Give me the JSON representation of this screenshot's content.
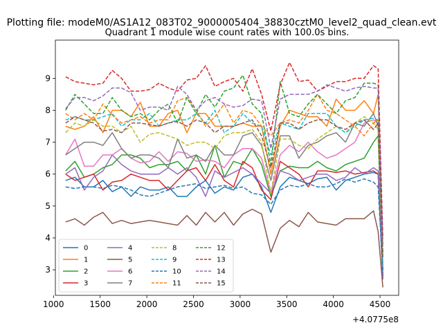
{
  "suptitle": "Plotting file: modeM0/AS1A12_083T02_9000005404_38830cztM0_level2_quad_clean.evt",
  "chart_data": {
    "type": "line",
    "title": "Quadrant 1 module wise count rates with 100.0s bins.",
    "xlabel": "",
    "ylabel": "",
    "x_offset_label": "+4.0775e8",
    "xlim": [
      1020,
      4700
    ],
    "ylim": [
      2.2,
      10.2
    ],
    "xticks": [
      1000,
      1500,
      2000,
      2500,
      3000,
      3500,
      4000,
      4500
    ],
    "yticks": [
      3,
      4,
      5,
      6,
      7,
      8,
      9
    ],
    "legend_loc": "lower left",
    "legend_ncol": 4,
    "x": [
      1130,
      1230,
      1330,
      1430,
      1530,
      1630,
      1730,
      1830,
      1930,
      2030,
      2130,
      2230,
      2330,
      2430,
      2530,
      2630,
      2730,
      2830,
      2930,
      3030,
      3130,
      3230,
      3330,
      3430,
      3530,
      3630,
      3730,
      3830,
      3930,
      4030,
      4130,
      4230,
      4330,
      4430,
      4480,
      4530
    ],
    "series": [
      {
        "name": "0",
        "color": "#1f77b4",
        "style": "solid",
        "values": [
          5.8,
          5.9,
          5.6,
          5.6,
          5.8,
          5.45,
          5.6,
          5.3,
          5.6,
          5.5,
          5.5,
          5.6,
          5.3,
          5.3,
          5.6,
          5.8,
          5.4,
          5.6,
          5.5,
          5.9,
          6.0,
          5.6,
          4.8,
          5.6,
          5.9,
          5.8,
          5.7,
          5.85,
          5.9,
          5.5,
          5.8,
          5.9,
          6.0,
          6.05,
          6.0,
          2.7
        ]
      },
      {
        "name": "1",
        "color": "#ff7f0e",
        "style": "solid",
        "values": [
          7.5,
          7.4,
          7.5,
          7.8,
          7.3,
          8.0,
          8.0,
          7.8,
          8.25,
          7.5,
          7.5,
          7.9,
          8.0,
          7.3,
          7.9,
          7.9,
          7.5,
          7.5,
          7.5,
          7.6,
          7.5,
          7.5,
          6.0,
          7.5,
          8.0,
          7.9,
          7.8,
          7.8,
          7.5,
          8.35,
          8.0,
          8.0,
          8.3,
          7.9,
          8.5,
          3.0
        ]
      },
      {
        "name": "2",
        "color": "#2ca02c",
        "style": "solid",
        "values": [
          6.1,
          6.4,
          5.9,
          6.0,
          6.2,
          6.3,
          6.6,
          6.6,
          6.5,
          6.2,
          6.3,
          6.3,
          6.4,
          6.1,
          6.6,
          6.0,
          6.9,
          5.9,
          6.4,
          6.3,
          6.8,
          6.3,
          5.3,
          6.1,
          6.25,
          6.2,
          6.2,
          6.4,
          6.2,
          6.1,
          6.3,
          6.4,
          6.5,
          7.0,
          7.2,
          2.8
        ]
      },
      {
        "name": "3",
        "color": "#d62728",
        "style": "solid",
        "values": [
          6.0,
          5.8,
          5.9,
          6.0,
          5.5,
          5.75,
          5.8,
          6.0,
          5.9,
          5.8,
          5.8,
          5.5,
          5.8,
          6.1,
          6.2,
          5.8,
          6.3,
          5.8,
          5.6,
          6.4,
          6.2,
          5.5,
          5.2,
          6.4,
          6.2,
          6.0,
          5.6,
          6.1,
          6.1,
          6.05,
          6.1,
          6.0,
          6.05,
          6.1,
          6.0,
          2.8
        ]
      },
      {
        "name": "4",
        "color": "#9467bd",
        "style": "solid",
        "values": [
          6.0,
          6.2,
          5.5,
          5.9,
          6.1,
          6.6,
          6.3,
          6.1,
          6.0,
          6.0,
          6.0,
          6.2,
          6.0,
          6.2,
          5.9,
          5.3,
          6.1,
          5.9,
          6.05,
          6.2,
          6.0,
          5.7,
          5.4,
          6.1,
          6.0,
          5.8,
          5.9,
          6.0,
          6.0,
          5.8,
          5.9,
          6.2,
          6.0,
          6.2,
          6.1,
          2.7
        ]
      },
      {
        "name": "5",
        "color": "#8c564b",
        "style": "solid",
        "values": [
          4.5,
          4.6,
          4.4,
          4.65,
          4.8,
          4.45,
          4.55,
          4.45,
          4.5,
          4.55,
          4.5,
          4.45,
          4.4,
          4.7,
          4.4,
          4.8,
          4.5,
          4.8,
          4.4,
          4.75,
          4.9,
          4.75,
          3.55,
          4.3,
          4.55,
          4.35,
          4.8,
          4.5,
          4.45,
          4.4,
          4.6,
          4.6,
          4.6,
          4.85,
          4.2,
          2.45
        ]
      },
      {
        "name": "6",
        "color": "#e377c2",
        "style": "solid",
        "values": [
          6.6,
          7.1,
          6.25,
          6.25,
          6.6,
          6.6,
          6.8,
          6.5,
          6.35,
          6.4,
          6.7,
          6.4,
          6.7,
          6.65,
          6.4,
          6.45,
          6.4,
          6.2,
          6.6,
          6.8,
          6.8,
          6.5,
          5.4,
          6.6,
          6.9,
          6.7,
          7.0,
          6.7,
          6.5,
          6.6,
          6.8,
          7.0,
          7.6,
          7.7,
          7.6,
          3.0
        ]
      },
      {
        "name": "7",
        "color": "#7f7f7f",
        "style": "solid",
        "values": [
          6.6,
          6.8,
          7.0,
          7.0,
          6.9,
          7.3,
          6.8,
          6.5,
          6.6,
          6.6,
          6.5,
          6.2,
          7.1,
          6.5,
          6.6,
          6.4,
          6.9,
          6.6,
          6.6,
          7.2,
          7.3,
          6.9,
          5.8,
          7.2,
          7.2,
          6.5,
          6.9,
          7.0,
          7.2,
          7.3,
          7.0,
          7.6,
          7.5,
          7.9,
          7.5,
          3.0
        ]
      },
      {
        "name": "8",
        "color": "#bcbd22",
        "style": "dashed",
        "values": [
          7.3,
          7.6,
          7.5,
          7.7,
          7.5,
          7.5,
          7.3,
          7.5,
          7.0,
          7.25,
          7.3,
          7.2,
          7.1,
          6.9,
          7.0,
          7.0,
          6.8,
          7.2,
          7.3,
          7.3,
          7.4,
          7.0,
          5.4,
          7.1,
          7.1,
          6.9,
          6.8,
          7.1,
          7.3,
          7.5,
          7.3,
          7.6,
          7.8,
          7.6,
          7.4,
          3.1
        ]
      },
      {
        "name": "9",
        "color": "#17becf",
        "style": "dashed",
        "values": [
          7.7,
          7.8,
          7.7,
          7.7,
          7.8,
          7.9,
          7.5,
          7.7,
          7.7,
          7.9,
          7.5,
          7.6,
          7.7,
          7.7,
          7.9,
          7.6,
          8.0,
          7.3,
          7.5,
          7.9,
          7.6,
          7.5,
          6.6,
          7.6,
          7.5,
          7.4,
          7.9,
          7.9,
          7.9,
          7.5,
          7.3,
          7.5,
          7.7,
          7.75,
          7.7,
          3.2
        ]
      },
      {
        "name": "10",
        "color": "#1f77b4",
        "style": "dashed",
        "values": [
          5.6,
          5.55,
          5.6,
          5.6,
          5.55,
          5.65,
          5.6,
          5.5,
          5.35,
          5.3,
          5.4,
          5.5,
          5.6,
          5.65,
          5.7,
          5.55,
          5.6,
          5.65,
          5.55,
          5.6,
          5.4,
          5.35,
          5.05,
          5.5,
          5.65,
          5.6,
          5.7,
          5.6,
          5.6,
          5.7,
          5.85,
          5.75,
          5.85,
          5.75,
          5.6,
          2.9
        ]
      },
      {
        "name": "11",
        "color": "#ff7f0e",
        "style": "dashed",
        "values": [
          7.9,
          7.7,
          7.9,
          7.7,
          8.2,
          7.85,
          7.6,
          7.7,
          7.8,
          7.6,
          7.7,
          7.7,
          8.3,
          8.4,
          8.0,
          7.5,
          7.8,
          8.2,
          7.6,
          8.0,
          7.9,
          7.5,
          7.2,
          7.6,
          7.7,
          7.6,
          8.0,
          8.5,
          8.0,
          7.9,
          7.7,
          7.5,
          7.2,
          7.6,
          7.7,
          3.5
        ]
      },
      {
        "name": "12",
        "color": "#2ca02c",
        "style": "dashed",
        "values": [
          8.0,
          8.5,
          8.2,
          7.9,
          7.9,
          8.4,
          8.0,
          7.8,
          7.9,
          7.7,
          8.0,
          8.2,
          7.6,
          8.4,
          7.9,
          8.5,
          8.1,
          8.6,
          8.7,
          9.1,
          8.2,
          7.9,
          6.3,
          8.9,
          7.9,
          7.8,
          8.2,
          8.5,
          8.2,
          7.9,
          8.3,
          8.4,
          8.85,
          8.85,
          8.8,
          3.5
        ]
      },
      {
        "name": "13",
        "color": "#d62728",
        "style": "dashed",
        "values": [
          9.05,
          8.9,
          8.85,
          8.8,
          8.85,
          9.25,
          9.0,
          8.6,
          8.6,
          8.65,
          8.85,
          8.7,
          8.6,
          8.95,
          9.0,
          9.4,
          8.75,
          8.9,
          9.0,
          8.6,
          9.3,
          8.5,
          7.35,
          8.8,
          9.5,
          8.9,
          8.95,
          8.6,
          8.75,
          8.9,
          8.9,
          9.0,
          9.0,
          9.4,
          9.3,
          4.0
        ]
      },
      {
        "name": "14",
        "color": "#9467bd",
        "style": "dashed",
        "values": [
          8.05,
          8.4,
          8.4,
          8.3,
          8.45,
          8.7,
          8.7,
          8.55,
          8.0,
          8.1,
          8.1,
          8.0,
          8.75,
          8.5,
          8.0,
          8.3,
          8.4,
          8.2,
          8.1,
          8.15,
          8.35,
          8.3,
          6.8,
          8.35,
          8.5,
          8.5,
          8.5,
          8.6,
          8.8,
          8.7,
          8.6,
          8.7,
          8.75,
          8.7,
          8.7,
          3.8
        ]
      },
      {
        "name": "15",
        "color": "#8c564b",
        "style": "dashed",
        "values": [
          7.6,
          7.8,
          7.7,
          7.6,
          7.35,
          7.4,
          7.3,
          7.6,
          7.6,
          7.55,
          7.5,
          7.6,
          7.65,
          7.5,
          7.7,
          7.6,
          7.3,
          7.5,
          7.5,
          7.6,
          7.7,
          7.2,
          6.2,
          7.6,
          7.6,
          7.4,
          7.6,
          7.7,
          7.7,
          7.5,
          7.4,
          7.6,
          7.7,
          7.4,
          7.6,
          3.4
        ]
      }
    ]
  }
}
